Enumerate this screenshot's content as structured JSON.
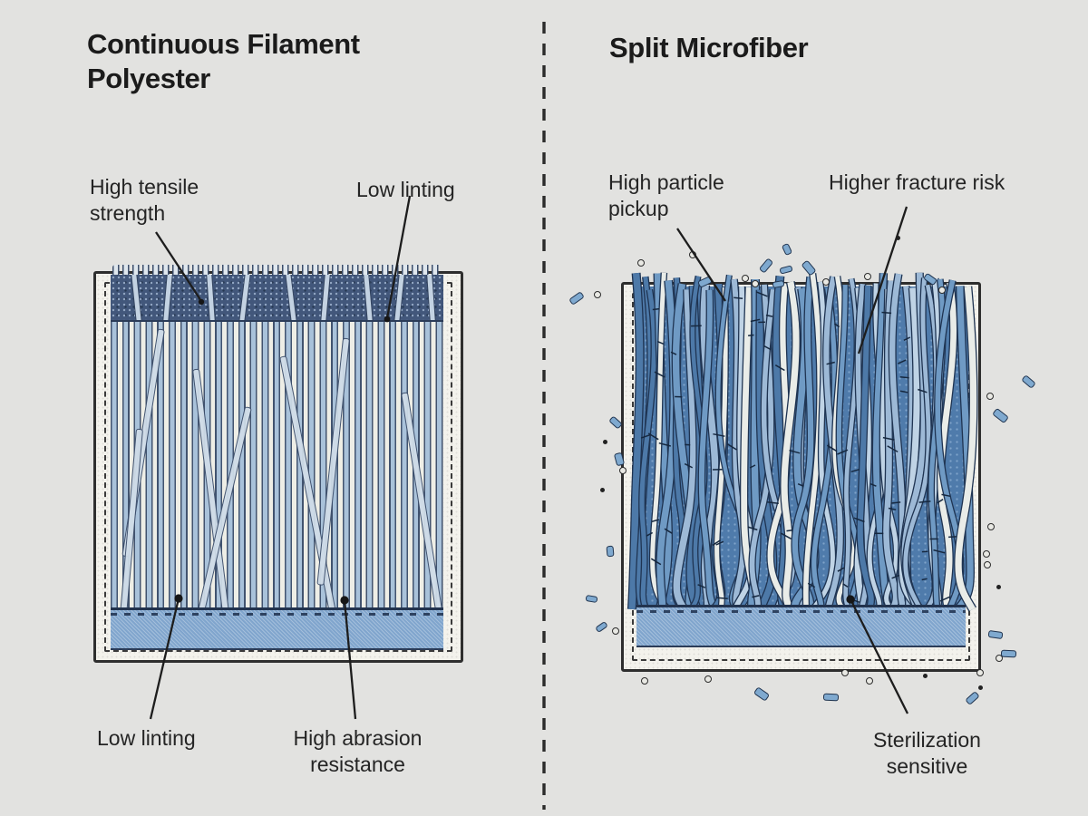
{
  "diagram": {
    "type": "side-by-side material comparison",
    "subject": "wipe fiber structures"
  },
  "panels": [
    {
      "title": "Continuous Filament\nPolyester",
      "illustration": "continuous-filament-swatch",
      "annotations": [
        {
          "text": "High tensile strength",
          "position": "top-left"
        },
        {
          "text": "Low linting",
          "position": "top-right"
        },
        {
          "text": "Low linting",
          "position": "bottom-left"
        },
        {
          "text": "High abrasion resistance",
          "position": "bottom-center"
        }
      ]
    },
    {
      "title": "Split Microfiber",
      "illustration": "split-microfiber-swatch",
      "annotations": [
        {
          "text": "High particle pickup",
          "position": "top-left"
        },
        {
          "text": "Higher fracture risk",
          "position": "top-right"
        },
        {
          "text": "Sterilization sensitive",
          "position": "bottom-right"
        }
      ]
    }
  ],
  "colors": {
    "background": "#e2e2e0",
    "ink": "#1d1d1d",
    "frame_fill": "#f3f2ec",
    "frame_stroke": "#2e2e2e",
    "dense_weave_band": "#42577b",
    "filament_light_blue": "#a9c2da",
    "filament_white": "#eeeee6",
    "fiber_outline": "#1f3452",
    "microfiber_mid_blue": "#6f9ac4",
    "microfiber_light_blue": "#bfd3e5",
    "microfiber_white": "#e9ece8",
    "bottom_band_blue": "#80a5cd",
    "debris_blue": "#7fa9cf"
  }
}
